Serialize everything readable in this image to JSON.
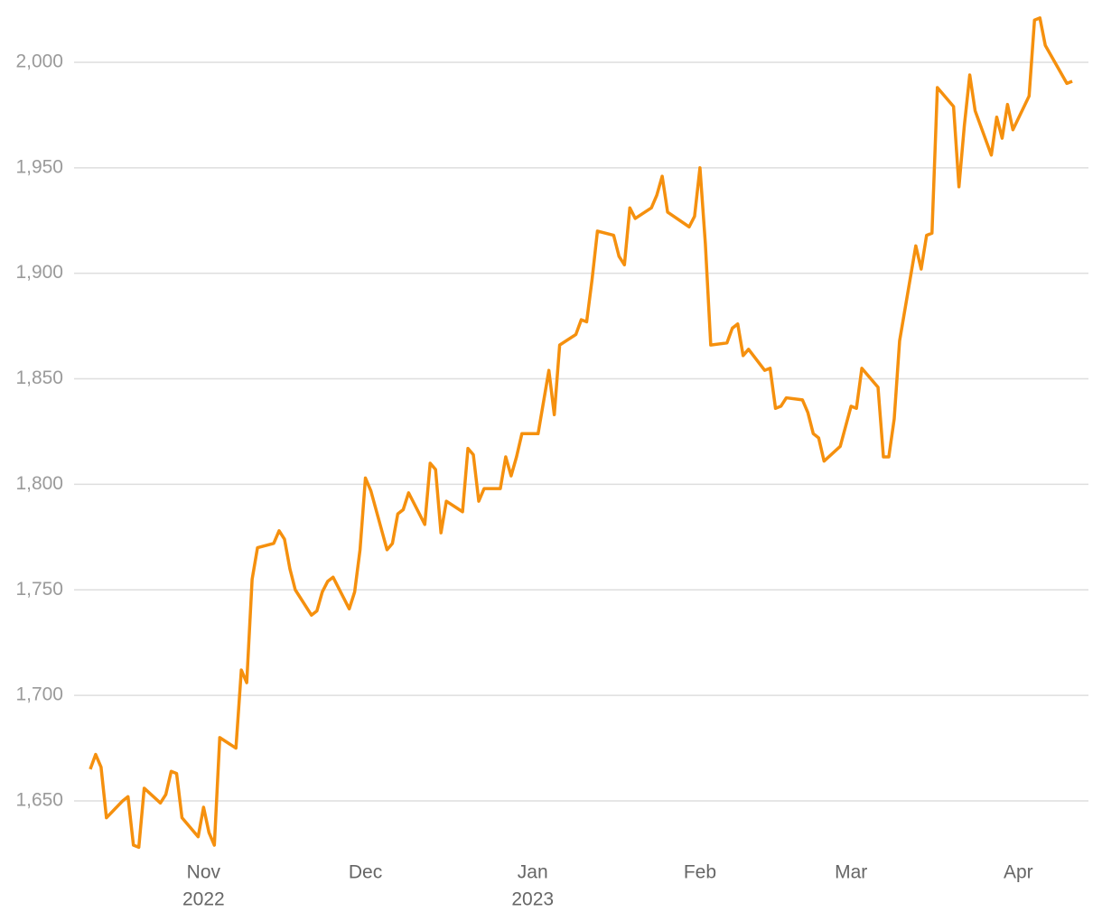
{
  "chart_data": {
    "type": "line",
    "xlim": [
      "2022-10-08",
      "2023-04-14"
    ],
    "xticks": [
      {
        "value": "2022-11-01",
        "label": [
          "Nov",
          "2022"
        ]
      },
      {
        "value": "2022-12-01",
        "label": "Dec"
      },
      {
        "value": "2023-01-01",
        "label": [
          "Jan",
          "2023"
        ]
      },
      {
        "value": "2023-02-01",
        "label": "Feb"
      },
      {
        "value": "2023-03-01",
        "label": "Mar"
      },
      {
        "value": "2023-04-01",
        "label": "Apr"
      }
    ],
    "ylim": [
      1625,
      2023
    ],
    "yticks": [
      {
        "value": 1650,
        "label": "1,650"
      },
      {
        "value": 1700,
        "label": "1,700"
      },
      {
        "value": 1750,
        "label": "1,750"
      },
      {
        "value": 1800,
        "label": "1,800"
      },
      {
        "value": 1850,
        "label": "1,850"
      },
      {
        "value": 1900,
        "label": "1,900"
      },
      {
        "value": 1950,
        "label": "1,950"
      },
      {
        "value": 2000,
        "label": "2,000"
      }
    ],
    "grid": true,
    "x": [
      "2022-10-11",
      "2022-10-12",
      "2022-10-13",
      "2022-10-14",
      "2022-10-17",
      "2022-10-18",
      "2022-10-19",
      "2022-10-20",
      "2022-10-21",
      "2022-10-24",
      "2022-10-25",
      "2022-10-26",
      "2022-10-27",
      "2022-10-28",
      "2022-10-31",
      "2022-11-01",
      "2022-11-02",
      "2022-11-03",
      "2022-11-04",
      "2022-11-07",
      "2022-11-08",
      "2022-11-09",
      "2022-11-10",
      "2022-11-11",
      "2022-11-14",
      "2022-11-15",
      "2022-11-16",
      "2022-11-17",
      "2022-11-18",
      "2022-11-21",
      "2022-11-22",
      "2022-11-23",
      "2022-11-24",
      "2022-11-25",
      "2022-11-28",
      "2022-11-29",
      "2022-11-30",
      "2022-12-01",
      "2022-12-02",
      "2022-12-05",
      "2022-12-06",
      "2022-12-07",
      "2022-12-08",
      "2022-12-09",
      "2022-12-12",
      "2022-12-13",
      "2022-12-14",
      "2022-12-15",
      "2022-12-16",
      "2022-12-19",
      "2022-12-20",
      "2022-12-21",
      "2022-12-22",
      "2022-12-23",
      "2022-12-26",
      "2022-12-27",
      "2022-12-28",
      "2022-12-29",
      "2022-12-30",
      "2023-01-02",
      "2023-01-04",
      "2023-01-05",
      "2023-01-06",
      "2023-01-09",
      "2023-01-10",
      "2023-01-11",
      "2023-01-12",
      "2023-01-13",
      "2023-01-16",
      "2023-01-17",
      "2023-01-18",
      "2023-01-19",
      "2023-01-20",
      "2023-01-23",
      "2023-01-24",
      "2023-01-25",
      "2023-01-26",
      "2023-01-30",
      "2023-01-31",
      "2023-02-01",
      "2023-02-02",
      "2023-02-03",
      "2023-02-06",
      "2023-02-07",
      "2023-02-08",
      "2023-02-09",
      "2023-02-10",
      "2023-02-13",
      "2023-02-14",
      "2023-02-15",
      "2023-02-16",
      "2023-02-17",
      "2023-02-20",
      "2023-02-21",
      "2023-02-22",
      "2023-02-23",
      "2023-02-24",
      "2023-02-27",
      "2023-03-01",
      "2023-03-02",
      "2023-03-03",
      "2023-03-06",
      "2023-03-07",
      "2023-03-08",
      "2023-03-09",
      "2023-03-10",
      "2023-03-13",
      "2023-03-14",
      "2023-03-15",
      "2023-03-16",
      "2023-03-17",
      "2023-03-20",
      "2023-03-21",
      "2023-03-22",
      "2023-03-23",
      "2023-03-24",
      "2023-03-27",
      "2023-03-28",
      "2023-03-29",
      "2023-03-30",
      "2023-03-31",
      "2023-04-03",
      "2023-04-04",
      "2023-04-05",
      "2023-04-06",
      "2023-04-10",
      "2023-04-11"
    ],
    "series": [
      {
        "color": "#f5900e",
        "values": [
          1665,
          1672,
          1666,
          1642,
          1650,
          1652,
          1629,
          1628,
          1656,
          1649,
          1653,
          1664,
          1663,
          1642,
          1633,
          1647,
          1635,
          1629,
          1680,
          1675,
          1712,
          1706,
          1755,
          1770,
          1772,
          1778,
          1774,
          1760,
          1750,
          1738,
          1740,
          1749,
          1754,
          1756,
          1741,
          1749,
          1769,
          1803,
          1797,
          1769,
          1772,
          1786,
          1788,
          1796,
          1781,
          1810,
          1807,
          1777,
          1792,
          1787,
          1817,
          1814,
          1792,
          1798,
          1798,
          1813,
          1804,
          1813,
          1824,
          1824,
          1854,
          1833,
          1866,
          1871,
          1878,
          1877,
          1897,
          1920,
          1918,
          1908,
          1904,
          1931,
          1926,
          1931,
          1937,
          1946,
          1929,
          1922,
          1927,
          1950,
          1914,
          1866,
          1867,
          1874,
          1876,
          1861,
          1864,
          1854,
          1855,
          1836,
          1837,
          1841,
          1840,
          1834,
          1824,
          1822,
          1811,
          1818,
          1837,
          1836,
          1855,
          1846,
          1813,
          1813,
          1831,
          1868,
          1913,
          1902,
          1918,
          1919,
          1988,
          1979,
          1941,
          1970,
          1994,
          1977,
          1956,
          1974,
          1964,
          1980,
          1968,
          1984,
          2020,
          2021,
          2008,
          1990,
          1991
        ]
      }
    ]
  }
}
